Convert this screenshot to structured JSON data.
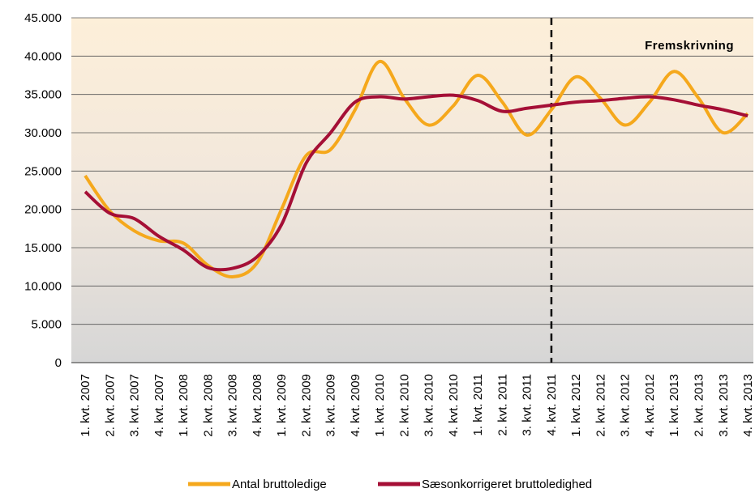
{
  "chart_data": {
    "type": "line",
    "categories": [
      "1. kvt. 2007",
      "2. kvt. 2007",
      "3. kvt. 2007",
      "4. kvt. 2007",
      "1. kvt. 2008",
      "2. kvt. 2008",
      "3. kvt. 2008",
      "4. kvt. 2008",
      "1. kvt. 2009",
      "2. kvt. 2009",
      "3. kvt. 2009",
      "4. kvt. 2009",
      "1. kvt. 2010",
      "2. kvt. 2010",
      "3. kvt. 2010",
      "4. kvt. 2010",
      "1. kvt. 2011",
      "2. kvt. 2011",
      "3. kvt. 2011",
      "4. kvt. 2011",
      "1. kvt. 2012",
      "2. kvt. 2012",
      "3. kvt. 2012",
      "4. kvt. 2012",
      "1. kvt. 2013",
      "2. kvt. 2013",
      "3. kvt. 2013",
      "4. kvt. 2013"
    ],
    "series": [
      {
        "name": "Antal bruttoledige",
        "color": "#f5a81c",
        "values": [
          24400,
          19800,
          17200,
          15900,
          15600,
          12700,
          11200,
          13000,
          20000,
          27000,
          27800,
          33000,
          39300,
          34500,
          31000,
          33500,
          37500,
          34000,
          29700,
          33000,
          37300,
          34500,
          31000,
          34000,
          38000,
          34500,
          30000,
          32500
        ]
      },
      {
        "name": "Sæsonkorrigeret bruttoledighed",
        "color": "#a50f36",
        "values": [
          22300,
          19500,
          18800,
          16500,
          14700,
          12400,
          12300,
          13800,
          18000,
          26000,
          30000,
          34000,
          34700,
          34400,
          34700,
          34900,
          34200,
          32800,
          33200,
          33600,
          34000,
          34200,
          34500,
          34700,
          34300,
          33600,
          33000,
          32200
        ]
      }
    ],
    "ylim": [
      0,
      45000
    ],
    "yticks": [
      0,
      {
        "value": 5000,
        "label": "5.000"
      },
      {
        "value": 10000,
        "label": "10.000"
      },
      {
        "value": 15000,
        "label": "15.000"
      },
      {
        "value": 20000,
        "label": "20.000"
      },
      {
        "value": 25000,
        "label": "25.000"
      },
      {
        "value": 30000,
        "label": "30.000"
      },
      {
        "value": 35000,
        "label": "35.000"
      },
      {
        "value": 40000,
        "label": "40.000"
      },
      {
        "value": 45000,
        "label": "45.000"
      }
    ],
    "grid": true,
    "annotation": {
      "text": "Fremskrivning",
      "category": "4. kvt. 2011"
    },
    "legend": "bottom"
  }
}
